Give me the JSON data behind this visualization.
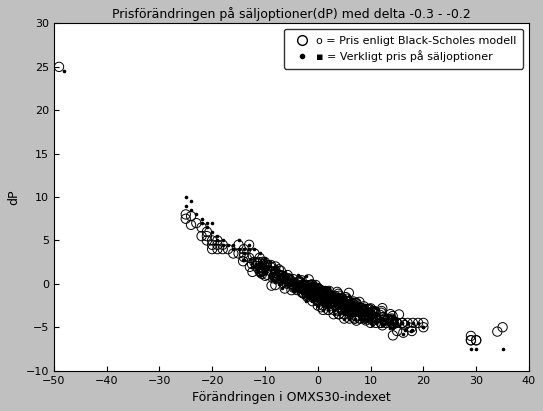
{
  "title": "Prisförändringen på säljoptioner(dP) med delta -0.3 - -0.2",
  "xlabel": "Förändringen i OMXS30-indexet",
  "ylabel": "dP",
  "xlim": [
    -50,
    40
  ],
  "ylim": [
    -10,
    30
  ],
  "xticks": [
    -50,
    -40,
    -30,
    -20,
    -10,
    0,
    10,
    20,
    30,
    40
  ],
  "yticks": [
    -10,
    -5,
    0,
    5,
    10,
    15,
    20,
    25,
    30
  ],
  "legend_bs": "o = Pris enligt Black-Scholes modell",
  "legend_real": "▪ = Verkligt pris på säljoptioner",
  "bg_color": "#c0c0c0",
  "plot_bg": "#ffffff",
  "bs_x": [
    -49,
    -25,
    -25,
    -24,
    -24,
    -23,
    -22,
    -22,
    -21,
    -21,
    -21,
    -20,
    -20,
    -20,
    -19,
    -19,
    -19,
    -18,
    -18,
    -17,
    -16,
    -15,
    -15,
    -14,
    -14,
    -13,
    -13,
    -12,
    -12,
    -11,
    -11,
    -10,
    -10,
    -9,
    -9,
    -8,
    -8,
    -7,
    -7,
    -6,
    -5,
    -4,
    -3,
    -2,
    -1,
    0,
    0,
    1,
    1,
    2,
    2,
    3,
    3,
    4,
    4,
    5,
    5,
    6,
    6,
    7,
    7,
    8,
    8,
    9,
    9,
    10,
    10,
    11,
    11,
    12,
    12,
    13,
    13,
    14,
    14,
    15,
    15,
    16,
    16,
    17,
    18,
    19,
    20,
    20,
    29,
    29,
    29,
    30,
    30,
    34,
    35
  ],
  "bs_y": [
    25,
    8.0,
    7.5,
    7.8,
    6.8,
    7.0,
    6.5,
    5.5,
    6.0,
    5.5,
    5.0,
    5.0,
    4.5,
    4.0,
    5.0,
    4.5,
    4.0,
    4.5,
    4.0,
    4.0,
    3.5,
    4.5,
    3.5,
    4.0,
    3.5,
    3.0,
    4.5,
    2.5,
    3.5,
    2.5,
    3.0,
    2.0,
    2.5,
    1.5,
    2.0,
    1.5,
    2.0,
    1.0,
    1.5,
    0.5,
    0.0,
    -0.5,
    -1.0,
    -1.5,
    -2.0,
    -2.0,
    -2.5,
    -2.5,
    -3.0,
    -3.0,
    -3.0,
    -3.0,
    -3.5,
    -3.5,
    -3.5,
    -3.5,
    -4.0,
    -4.0,
    -3.5,
    -4.0,
    -4.0,
    -4.0,
    -4.0,
    -4.0,
    -4.0,
    -3.5,
    -4.5,
    -4.0,
    -4.5,
    -4.5,
    -4.5,
    -4.5,
    -4.5,
    -4.0,
    -4.5,
    -4.5,
    -4.5,
    -4.5,
    -4.5,
    -4.5,
    -4.5,
    -4.5,
    -4.5,
    -5.0,
    -6.0,
    -6.5,
    -6.5,
    -6.5,
    -6.5,
    -5.5,
    -5.0
  ],
  "real_x": [
    -48,
    -25,
    -25,
    -24,
    -24,
    -23,
    -22,
    -22,
    -21,
    -21,
    -20,
    -20,
    -19,
    -19,
    -18,
    -18,
    -17,
    -16,
    -16,
    -15,
    -15,
    -14,
    -14,
    -13,
    -13,
    -12,
    -12,
    -11,
    -11,
    -10,
    -10,
    -9,
    -9,
    -8,
    -8,
    -7,
    -6,
    -5,
    -4,
    -3,
    -2,
    -1,
    0,
    0,
    1,
    1,
    2,
    2,
    3,
    3,
    4,
    4,
    5,
    5,
    6,
    6,
    7,
    7,
    8,
    8,
    9,
    9,
    10,
    10,
    11,
    11,
    12,
    12,
    13,
    13,
    14,
    14,
    15,
    15,
    16,
    16,
    17,
    18,
    19,
    20,
    20,
    29,
    30,
    35
  ],
  "real_y": [
    24.5,
    10.0,
    9.0,
    9.5,
    8.5,
    8.0,
    7.5,
    7.0,
    7.0,
    6.5,
    7.0,
    6.0,
    5.5,
    5.0,
    5.0,
    4.5,
    4.5,
    4.5,
    4.0,
    5.0,
    4.0,
    4.0,
    3.5,
    4.0,
    4.5,
    3.0,
    4.0,
    2.5,
    3.5,
    2.5,
    3.0,
    2.0,
    2.5,
    2.0,
    1.5,
    1.0,
    0.5,
    0.0,
    -0.5,
    -1.0,
    -1.5,
    -2.0,
    -2.0,
    -2.5,
    -2.5,
    -3.0,
    -3.0,
    -3.0,
    -3.0,
    -3.5,
    -3.5,
    -3.5,
    -3.5,
    -4.0,
    -3.5,
    -4.0,
    -4.0,
    -4.0,
    -4.0,
    -4.0,
    -4.0,
    -4.0,
    -3.5,
    -4.5,
    -4.0,
    -4.5,
    -4.5,
    -4.5,
    -4.5,
    -4.5,
    -4.0,
    -4.5,
    -4.5,
    -4.5,
    -4.5,
    -4.5,
    -4.5,
    -4.5,
    -4.5,
    -5.0,
    -5.0,
    -7.5,
    -7.5,
    -7.5
  ]
}
